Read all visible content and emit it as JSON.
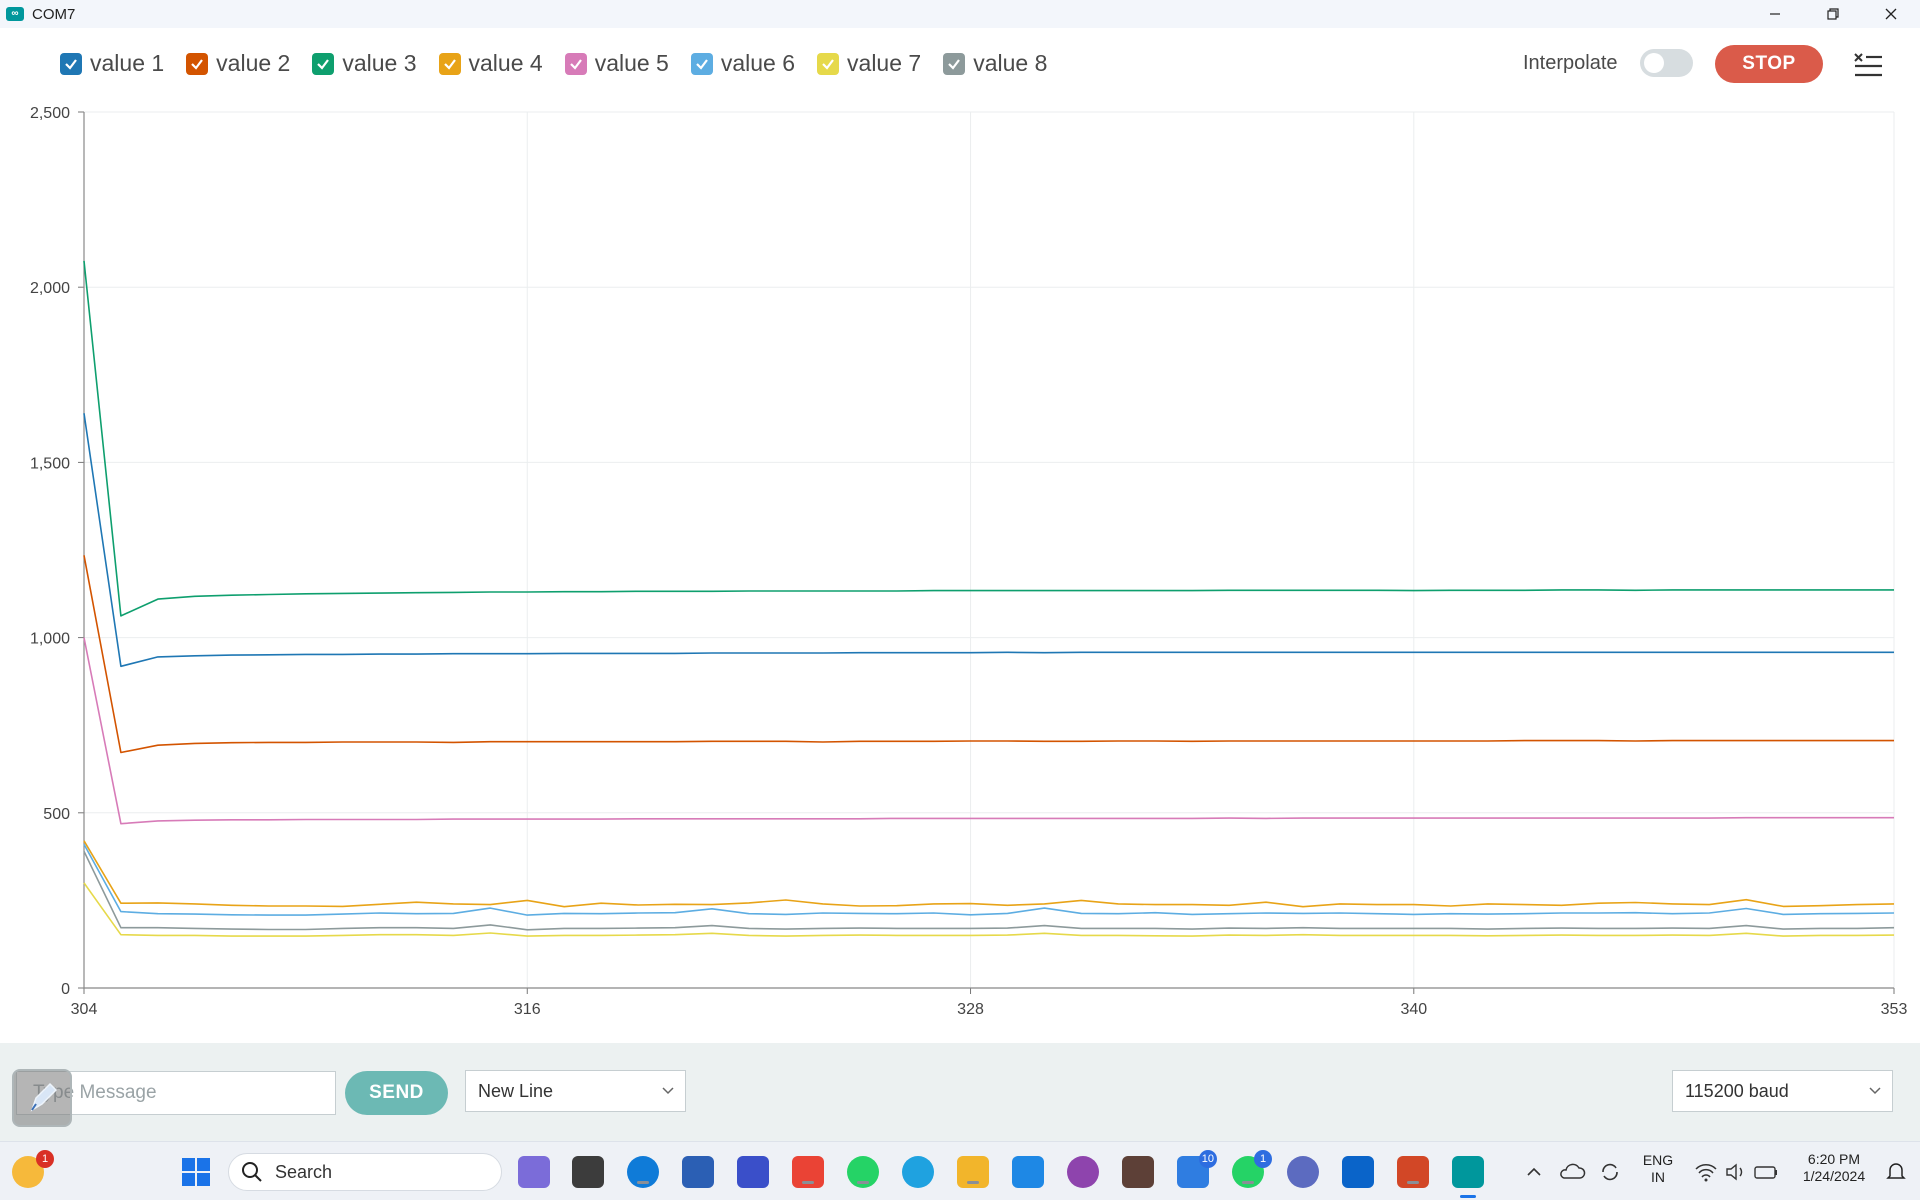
{
  "window": {
    "title": "COM7"
  },
  "toolbar": {
    "legend": [
      {
        "label": "value 1",
        "color": "#1f77b4",
        "checked": true
      },
      {
        "label": "value 2",
        "color": "#d35400",
        "checked": true
      },
      {
        "label": "value 3",
        "color": "#0e9f6e",
        "checked": true
      },
      {
        "label": "value 4",
        "color": "#e8a317",
        "checked": true
      },
      {
        "label": "value 5",
        "color": "#d77bb8",
        "checked": true
      },
      {
        "label": "value 6",
        "color": "#5dade2",
        "checked": true
      },
      {
        "label": "value 7",
        "color": "#e6d94a",
        "checked": true
      },
      {
        "label": "value 8",
        "color": "#8d9a9b",
        "checked": true
      }
    ],
    "interpolate_label": "Interpolate",
    "interpolate_on": false,
    "stop_label": "STOP"
  },
  "chart_data": {
    "type": "line",
    "x_ticks": [
      "304",
      "316",
      "328",
      "340",
      "353"
    ],
    "y_ticks": [
      "0",
      "500",
      "1,000",
      "1,500",
      "2,000",
      "2,500"
    ],
    "xlim": [
      304,
      353
    ],
    "ylim": [
      0,
      2500
    ],
    "grid": true,
    "x": [
      304,
      305,
      306,
      307,
      308,
      309,
      310,
      311,
      312,
      313,
      314,
      315,
      316,
      317,
      318,
      319,
      320,
      321,
      322,
      323,
      324,
      325,
      326,
      327,
      328,
      329,
      330,
      331,
      332,
      333,
      334,
      335,
      336,
      337,
      338,
      339,
      340,
      341,
      342,
      343,
      344,
      345,
      346,
      347,
      348,
      349,
      350,
      351,
      352,
      353
    ],
    "series": [
      {
        "name": "value 1",
        "color": "#1f77b4",
        "values": [
          1640,
          918,
          945,
          948,
          950,
          951,
          952,
          952,
          953,
          953,
          954,
          954,
          954,
          955,
          955,
          955,
          955,
          956,
          956,
          956,
          956,
          957,
          957,
          957,
          957,
          958,
          957,
          958,
          958,
          958,
          958,
          958,
          958,
          958,
          958,
          958,
          958,
          958,
          958,
          958,
          958,
          958,
          958,
          958,
          958,
          958,
          958,
          958,
          958,
          958
        ]
      },
      {
        "name": "value 2",
        "color": "#d35400",
        "values": [
          1235,
          672,
          693,
          698,
          700,
          701,
          701,
          702,
          702,
          702,
          701,
          703,
          703,
          703,
          703,
          703,
          703,
          704,
          704,
          704,
          702,
          704,
          704,
          704,
          705,
          705,
          704,
          704,
          705,
          705,
          704,
          705,
          705,
          705,
          705,
          705,
          705,
          705,
          705,
          706,
          706,
          706,
          705,
          706,
          706,
          706,
          706,
          706,
          706,
          706
        ]
      },
      {
        "name": "value 3",
        "color": "#0e9f6e",
        "values": [
          2075,
          1062,
          1110,
          1118,
          1121,
          1123,
          1125,
          1126,
          1127,
          1128,
          1129,
          1130,
          1130,
          1131,
          1131,
          1132,
          1132,
          1132,
          1133,
          1133,
          1133,
          1133,
          1133,
          1134,
          1134,
          1134,
          1134,
          1134,
          1134,
          1134,
          1134,
          1135,
          1135,
          1135,
          1135,
          1135,
          1134,
          1135,
          1135,
          1135,
          1136,
          1136,
          1135,
          1136,
          1136,
          1136,
          1136,
          1136,
          1136,
          1136
        ]
      },
      {
        "name": "value 4",
        "color": "#e8a317",
        "values": [
          420,
          242,
          243,
          240,
          236,
          234,
          234,
          233,
          239,
          245,
          240,
          238,
          250,
          232,
          242,
          237,
          239,
          238,
          243,
          251,
          240,
          234,
          235,
          240,
          241,
          236,
          240,
          250,
          240,
          238,
          238,
          236,
          245,
          232,
          240,
          238,
          238,
          234,
          240,
          238,
          236,
          242,
          244,
          240,
          238,
          252,
          233,
          235,
          238,
          240
        ]
      },
      {
        "name": "value 5",
        "color": "#d77bb8",
        "values": [
          1000,
          469,
          477,
          479,
          480,
          480,
          481,
          481,
          481,
          481,
          482,
          482,
          482,
          482,
          482,
          483,
          483,
          483,
          483,
          483,
          483,
          483,
          484,
          484,
          484,
          484,
          484,
          484,
          484,
          484,
          484,
          485,
          484,
          485,
          485,
          485,
          485,
          485,
          485,
          485,
          485,
          485,
          485,
          485,
          485,
          486,
          486,
          486,
          486,
          486
        ]
      },
      {
        "name": "value 6",
        "color": "#5dade2",
        "values": [
          410,
          218,
          212,
          211,
          209,
          208,
          208,
          211,
          214,
          212,
          213,
          228,
          208,
          213,
          212,
          214,
          215,
          226,
          212,
          210,
          214,
          213,
          212,
          214,
          209,
          213,
          228,
          213,
          212,
          215,
          210,
          212,
          214,
          213,
          214,
          212,
          210,
          212,
          211,
          212,
          214,
          214,
          215,
          212,
          214,
          227,
          210,
          212,
          213,
          214
        ]
      },
      {
        "name": "value 7",
        "color": "#e6d94a",
        "values": [
          300,
          152,
          150,
          150,
          148,
          148,
          148,
          150,
          152,
          152,
          150,
          157,
          148,
          150,
          150,
          151,
          152,
          156,
          150,
          148,
          150,
          151,
          150,
          150,
          150,
          151,
          156,
          150,
          150,
          149,
          148,
          151,
          150,
          152,
          150,
          150,
          150,
          150,
          149,
          150,
          151,
          150,
          150,
          151,
          150,
          156,
          148,
          150,
          150,
          151
        ]
      },
      {
        "name": "value 8",
        "color": "#8d9a9b",
        "values": [
          390,
          172,
          172,
          170,
          168,
          167,
          167,
          170,
          172,
          172,
          170,
          180,
          166,
          170,
          170,
          171,
          172,
          178,
          170,
          168,
          170,
          171,
          170,
          170,
          170,
          171,
          178,
          170,
          170,
          170,
          168,
          171,
          170,
          172,
          170,
          170,
          170,
          170,
          168,
          170,
          171,
          170,
          170,
          171,
          170,
          178,
          168,
          170,
          170,
          172
        ]
      }
    ]
  },
  "bottom": {
    "message_placeholder": "Type Message",
    "send_label": "SEND",
    "line_ending": "New Line",
    "baud": "115200 baud"
  },
  "taskbar": {
    "search_label": "Search",
    "weather_badge": "1",
    "todo_badge": "10",
    "whatsapp_badge": "1",
    "lang_top": "ENG",
    "lang_bottom": "IN",
    "time": "6:20 PM",
    "date": "1/24/2024"
  }
}
